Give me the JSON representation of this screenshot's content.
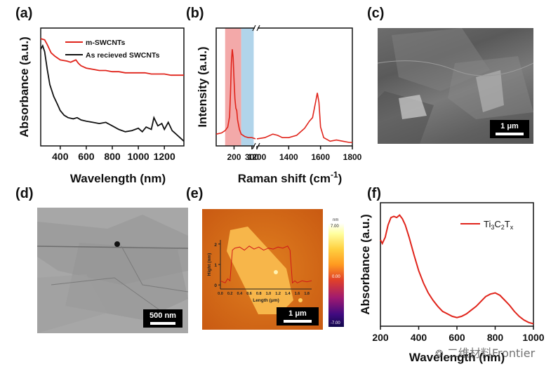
{
  "panel_labels": {
    "a": "(a)",
    "b": "(b)",
    "c": "(c)",
    "d": "(d)",
    "e": "(e)",
    "f": "(f)"
  },
  "watermark": "二维材料Frontier",
  "chart_data": [
    {
      "panel": "(a)",
      "type": "line",
      "xlabel": "Wavelength (nm)",
      "ylabel": "Absorbance (a.u.)",
      "xticks": [
        400,
        600,
        800,
        1000,
        1200
      ],
      "xlim": [
        250,
        1350
      ],
      "ylim": [
        0,
        1
      ],
      "legend_position": "top-right",
      "series": [
        {
          "name": "m-SWCNTs",
          "color": "#e0241b",
          "x": [
            250,
            280,
            300,
            330,
            360,
            400,
            450,
            480,
            500,
            520,
            540,
            560,
            600,
            650,
            700,
            750,
            800,
            850,
            900,
            950,
            1000,
            1050,
            1100,
            1150,
            1200,
            1250,
            1300,
            1350
          ],
          "y": [
            0.91,
            0.9,
            0.86,
            0.79,
            0.76,
            0.73,
            0.72,
            0.71,
            0.72,
            0.73,
            0.7,
            0.68,
            0.66,
            0.65,
            0.64,
            0.64,
            0.63,
            0.63,
            0.62,
            0.62,
            0.62,
            0.62,
            0.61,
            0.61,
            0.61,
            0.6,
            0.6,
            0.6
          ]
        },
        {
          "name": "As recieved SWCNTs",
          "color": "#111111",
          "x": [
            250,
            265,
            280,
            300,
            320,
            350,
            380,
            400,
            430,
            460,
            500,
            530,
            560,
            600,
            650,
            700,
            750,
            800,
            850,
            900,
            950,
            1000,
            1030,
            1060,
            1100,
            1120,
            1150,
            1180,
            1200,
            1230,
            1260,
            1290,
            1320,
            1350
          ],
          "y": [
            0.82,
            0.85,
            0.8,
            0.65,
            0.52,
            0.42,
            0.35,
            0.3,
            0.26,
            0.24,
            0.23,
            0.24,
            0.22,
            0.21,
            0.2,
            0.19,
            0.2,
            0.17,
            0.14,
            0.12,
            0.13,
            0.15,
            0.12,
            0.16,
            0.14,
            0.24,
            0.17,
            0.19,
            0.14,
            0.2,
            0.13,
            0.1,
            0.07,
            0.04
          ]
        }
      ]
    },
    {
      "panel": "(b)",
      "type": "line",
      "xlabel": "Raman shift (cm⁻¹)",
      "xlabel_main": "Raman shift (cm",
      "xlabel_sup": "-1",
      "xlabel_close": ")",
      "ylabel": "Intensity (a.u.)",
      "broken_axis": true,
      "xticks_left": [
        200,
        300
      ],
      "xticks_right": [
        1200,
        1400,
        1600,
        1800
      ],
      "xtick_labels": [
        "200",
        "300",
        "1200",
        "1400",
        "1600",
        "1800"
      ],
      "bands": [
        {
          "label": "",
          "from": 150,
          "to": 240,
          "color": "#f2a0a0"
        },
        {
          "label": "",
          "from": 240,
          "to": 310,
          "color": "#a8cfe8"
        }
      ],
      "series": [
        {
          "name": "",
          "color": "#e0241b",
          "segment_left": {
            "x": [
              100,
              130,
              150,
              165,
              175,
              180,
              185,
              190,
              195,
              200,
              205,
              210,
              215,
              220,
              230,
              240,
              260,
              280,
              300,
              320
            ],
            "y": [
              0.1,
              0.11,
              0.13,
              0.16,
              0.25,
              0.45,
              0.7,
              0.82,
              0.75,
              0.55,
              0.4,
              0.32,
              0.3,
              0.22,
              0.14,
              0.1,
              0.08,
              0.07,
              0.07,
              0.06
            ]
          },
          "segment_right": {
            "x": [
              1200,
              1250,
              1300,
              1330,
              1360,
              1400,
              1450,
              1500,
              1530,
              1550,
              1570,
              1580,
              1590,
              1600,
              1620,
              1660,
              1700,
              1740,
              1780,
              1800
            ],
            "y": [
              0.06,
              0.07,
              0.1,
              0.09,
              0.07,
              0.07,
              0.09,
              0.15,
              0.21,
              0.24,
              0.38,
              0.45,
              0.37,
              0.16,
              0.07,
              0.04,
              0.05,
              0.04,
              0.03,
              0.03
            ]
          }
        }
      ]
    },
    {
      "panel": "(f)",
      "type": "line",
      "xlabel": "Wavelength (nm)",
      "ylabel": "Absorbance (a.u.)",
      "xticks": [
        200,
        400,
        600,
        800,
        1000
      ],
      "xlim": [
        200,
        1000
      ],
      "ylim": [
        0,
        1
      ],
      "legend_position": "top-right",
      "series": [
        {
          "name": "Ti3C2Tx",
          "color": "#e0241b",
          "x": [
            200,
            210,
            225,
            240,
            255,
            270,
            285,
            300,
            315,
            330,
            350,
            375,
            400,
            425,
            450,
            475,
            500,
            525,
            550,
            575,
            600,
            625,
            650,
            675,
            700,
            725,
            750,
            775,
            800,
            825,
            850,
            875,
            900,
            925,
            950,
            975,
            1000
          ],
          "y": [
            0.7,
            0.67,
            0.72,
            0.82,
            0.88,
            0.89,
            0.88,
            0.9,
            0.87,
            0.82,
            0.72,
            0.58,
            0.45,
            0.35,
            0.27,
            0.21,
            0.16,
            0.12,
            0.1,
            0.08,
            0.07,
            0.08,
            0.1,
            0.13,
            0.16,
            0.2,
            0.24,
            0.26,
            0.27,
            0.25,
            0.21,
            0.17,
            0.12,
            0.08,
            0.05,
            0.03,
            0.02
          ]
        }
      ]
    }
  ],
  "legend_f": {
    "text_parts": [
      "Ti",
      "3",
      "C",
      "2",
      "T",
      "x"
    ]
  },
  "image_c": {
    "scale": "1 μm"
  },
  "image_d": {
    "scale": "500 nm"
  },
  "image_e": {
    "scale": "1 μm",
    "colorbar_unit": "nm",
    "colorbar_top": "7.00",
    "colorbar_mid": "0.00",
    "colorbar_bottom": "-7.00",
    "inset": {
      "xlabel": "Length (μm)",
      "ylabel": "Hight (nm)",
      "xticks": [
        "0.0",
        "0.2",
        "0.4",
        "0.6",
        "0.8",
        "1.0",
        "1.2",
        "1.4",
        "1.6",
        "1.8"
      ],
      "yticks": [
        "0",
        "1",
        "2"
      ],
      "x": [
        0.0,
        0.1,
        0.15,
        0.2,
        0.25,
        0.3,
        0.4,
        0.5,
        0.6,
        0.7,
        0.8,
        0.9,
        1.0,
        1.1,
        1.2,
        1.3,
        1.4,
        1.45,
        1.5,
        1.55,
        1.6,
        1.7,
        1.8,
        1.9
      ],
      "y": [
        0.2,
        0.1,
        0.3,
        0.2,
        1.7,
        1.8,
        1.85,
        1.7,
        1.9,
        1.75,
        1.85,
        1.7,
        1.8,
        1.75,
        1.85,
        1.8,
        1.9,
        1.7,
        0.1,
        0.2,
        0.1,
        0.2,
        0.15,
        0.2
      ]
    }
  }
}
